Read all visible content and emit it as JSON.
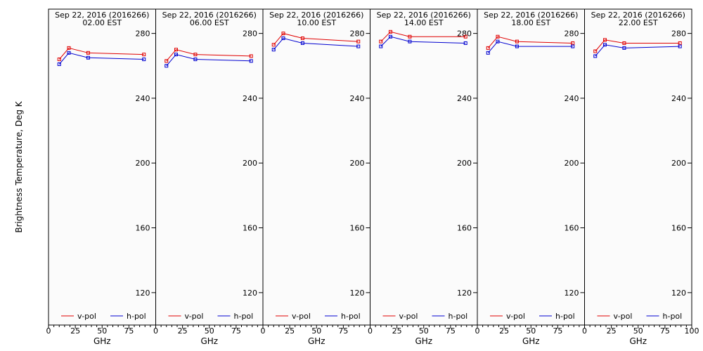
{
  "figure": {
    "ylabel": "Brightness Temperature, Deg K",
    "xlabel": "GHz",
    "colors": {
      "v_pol": "#e00000",
      "h_pol": "#0000d0",
      "background": "#fbfbfb",
      "axes": "#000000"
    }
  },
  "chart_data": [
    {
      "type": "line",
      "title": "Sep 22, 2016 (2016266)",
      "subtitle": "02.00 EST",
      "xlabel": "GHz",
      "ylabel": "Brightness Temperature, Deg K",
      "xlim": [
        0,
        100
      ],
      "ylim": [
        100,
        295
      ],
      "xticks": [
        0,
        25,
        50,
        75,
        100
      ],
      "yticks": [
        120,
        160,
        200,
        240,
        280
      ],
      "x": [
        10,
        19,
        37,
        89
      ],
      "series": [
        {
          "name": "v-pol",
          "color": "#e00000",
          "values": [
            264,
            271,
            268,
            267
          ]
        },
        {
          "name": "h-pol",
          "color": "#0000d0",
          "values": [
            261,
            268,
            265,
            264
          ]
        }
      ],
      "legend": "bottom"
    },
    {
      "type": "line",
      "title": "Sep 22, 2016 (2016266)",
      "subtitle": "06.00 EST",
      "xlabel": "GHz",
      "ylabel": "Brightness Temperature, Deg K",
      "xlim": [
        0,
        100
      ],
      "ylim": [
        100,
        295
      ],
      "xticks": [
        0,
        25,
        50,
        75,
        100
      ],
      "yticks": [
        120,
        160,
        200,
        240,
        280
      ],
      "x": [
        10,
        19,
        37,
        89
      ],
      "series": [
        {
          "name": "v-pol",
          "color": "#e00000",
          "values": [
            263,
            270,
            267,
            266
          ]
        },
        {
          "name": "h-pol",
          "color": "#0000d0",
          "values": [
            260,
            267,
            264,
            263
          ]
        }
      ],
      "legend": "bottom"
    },
    {
      "type": "line",
      "title": "Sep 22, 2016 (2016266)",
      "subtitle": "10.00 EST",
      "xlabel": "GHz",
      "ylabel": "Brightness Temperature, Deg K",
      "xlim": [
        0,
        100
      ],
      "ylim": [
        100,
        295
      ],
      "xticks": [
        0,
        25,
        50,
        75,
        100
      ],
      "yticks": [
        120,
        160,
        200,
        240,
        280
      ],
      "x": [
        10,
        19,
        37,
        89
      ],
      "series": [
        {
          "name": "v-pol",
          "color": "#e00000",
          "values": [
            273,
            280,
            277,
            275
          ]
        },
        {
          "name": "h-pol",
          "color": "#0000d0",
          "values": [
            270,
            277,
            274,
            272
          ]
        }
      ],
      "legend": "bottom"
    },
    {
      "type": "line",
      "title": "Sep 22, 2016 (2016266)",
      "subtitle": "14.00 EST",
      "xlabel": "GHz",
      "ylabel": "Brightness Temperature, Deg K",
      "xlim": [
        0,
        100
      ],
      "ylim": [
        100,
        295
      ],
      "xticks": [
        0,
        25,
        50,
        75,
        100
      ],
      "yticks": [
        120,
        160,
        200,
        240,
        280
      ],
      "x": [
        10,
        19,
        37,
        89
      ],
      "series": [
        {
          "name": "v-pol",
          "color": "#e00000",
          "values": [
            275,
            281,
            278,
            278
          ]
        },
        {
          "name": "h-pol",
          "color": "#0000d0",
          "values": [
            272,
            278,
            275,
            274
          ]
        }
      ],
      "legend": "bottom"
    },
    {
      "type": "line",
      "title": "Sep 22, 2016 (2016266)",
      "subtitle": "18.00 EST",
      "xlabel": "GHz",
      "ylabel": "Brightness Temperature, Deg K",
      "xlim": [
        0,
        100
      ],
      "ylim": [
        100,
        295
      ],
      "xticks": [
        0,
        25,
        50,
        75,
        100
      ],
      "yticks": [
        120,
        160,
        200,
        240,
        280
      ],
      "x": [
        10,
        19,
        37,
        89
      ],
      "series": [
        {
          "name": "v-pol",
          "color": "#e00000",
          "values": [
            271,
            278,
            275,
            274
          ]
        },
        {
          "name": "h-pol",
          "color": "#0000d0",
          "values": [
            268,
            275,
            272,
            272
          ]
        }
      ],
      "legend": "bottom"
    },
    {
      "type": "line",
      "title": "Sep 22, 2016 (2016266)",
      "subtitle": "22.00 EST",
      "xlabel": "GHz",
      "ylabel": "Brightness Temperature, Deg K",
      "xlim": [
        0,
        100
      ],
      "ylim": [
        100,
        295
      ],
      "xticks": [
        0,
        25,
        50,
        75,
        100
      ],
      "yticks": [
        120,
        160,
        200,
        240,
        280
      ],
      "x": [
        10,
        19,
        37,
        89
      ],
      "series": [
        {
          "name": "v-pol",
          "color": "#e00000",
          "values": [
            269,
            276,
            274,
            274
          ]
        },
        {
          "name": "h-pol",
          "color": "#0000d0",
          "values": [
            266,
            273,
            271,
            272
          ]
        }
      ],
      "legend": "bottom"
    }
  ]
}
